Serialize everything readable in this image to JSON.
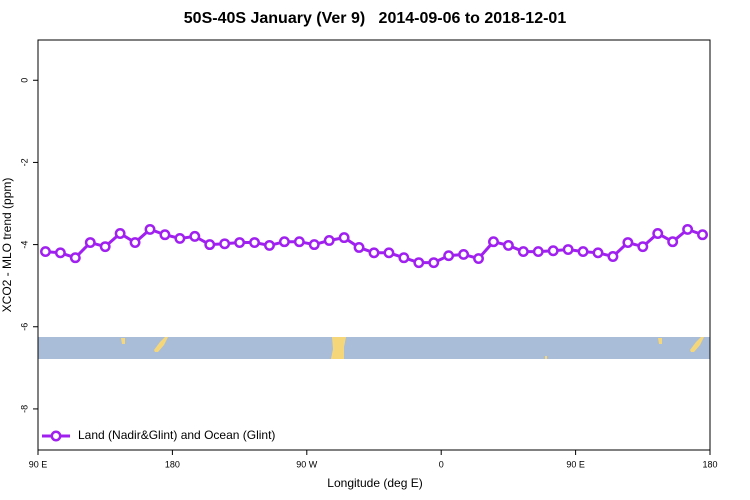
{
  "chart_data": {
    "type": "line",
    "title": "50S-40S January (Ver 9)   2014-09-06 to 2018-12-01",
    "xlabel": "Longitude (deg E)",
    "ylabel": "XCO2 - MLO trend (ppm)",
    "x": [
      95,
      105,
      115,
      125,
      135,
      145,
      155,
      165,
      175,
      185,
      195,
      205,
      215,
      225,
      235,
      245,
      255,
      265,
      275,
      285,
      295,
      305,
      315,
      325,
      335,
      345,
      355,
      365,
      375,
      385,
      395,
      405,
      415,
      425,
      435,
      445,
      455,
      465,
      475,
      485,
      495,
      505,
      515,
      525,
      535
    ],
    "series": [
      {
        "name": "Land (Nadir&Glint) and Ocean (Glint)",
        "color": "#a020f0",
        "values": [
          -4.17,
          -4.2,
          -4.32,
          -3.95,
          -4.05,
          -3.73,
          -3.95,
          -3.63,
          -3.76,
          -3.85,
          -3.8,
          -4.0,
          -3.98,
          -3.95,
          -3.95,
          -4.02,
          -3.93,
          -3.93,
          -4.0,
          -3.9,
          -3.83,
          -4.07,
          -4.2,
          -4.2,
          -4.32,
          -4.44,
          -4.44,
          -4.27,
          -4.24,
          -4.34,
          -3.93,
          -4.02,
          -4.17,
          -4.17,
          -4.15,
          -4.12,
          -4.17,
          -4.2,
          -4.29,
          -3.95,
          -4.05,
          -3.73,
          -3.93,
          -3.63,
          -3.76
        ]
      }
    ],
    "xlim": [
      90,
      540
    ],
    "xticks": [
      {
        "value": 90,
        "label": "90 E"
      },
      180,
      {
        "value": 270,
        "label": "90 W"
      },
      {
        "value": 360,
        "label": "0"
      },
      {
        "value": 450,
        "label": "90 E"
      },
      {
        "value": 540,
        "label": "180"
      }
    ],
    "ylim": [
      -9,
      0.98
    ],
    "yticks": [
      0,
      -2,
      -4,
      -6,
      -8
    ],
    "legend": "bottomleft"
  }
}
